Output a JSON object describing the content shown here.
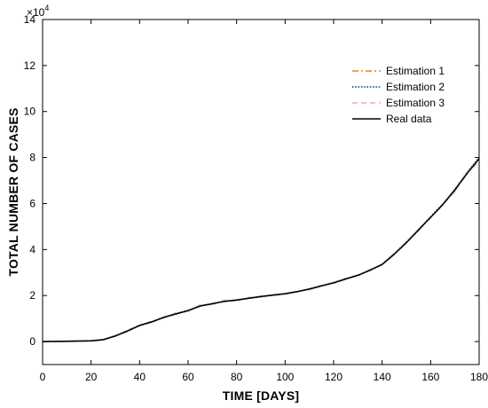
{
  "chart_data": {
    "type": "line",
    "xlabel": "TIME [DAYS]",
    "ylabel": "TOTAL NUMBER OF CASES",
    "y_multiplier_label": {
      "base": "×10",
      "exponent": "4"
    },
    "xlim": [
      0,
      180
    ],
    "ylim": [
      -1,
      14
    ],
    "x_ticks": [
      0,
      20,
      40,
      60,
      80,
      100,
      120,
      140,
      160,
      180
    ],
    "y_ticks": [
      0,
      2,
      4,
      6,
      8,
      10,
      12,
      14
    ],
    "grid": false,
    "legend_position": "top-right",
    "x": [
      0,
      10,
      20,
      25,
      30,
      35,
      40,
      45,
      50,
      55,
      60,
      65,
      70,
      75,
      80,
      85,
      90,
      95,
      100,
      105,
      110,
      115,
      120,
      125,
      130,
      135,
      140,
      145,
      150,
      155,
      160,
      165,
      170,
      175,
      180
    ],
    "series": [
      {
        "name": "Estimation 1",
        "color": "#f07f1d",
        "style": "dashdot",
        "values": [
          0,
          0.01,
          0.03,
          0.08,
          0.25,
          0.45,
          0.7,
          0.85,
          1.05,
          1.2,
          1.35,
          1.55,
          1.65,
          1.75,
          1.8,
          1.88,
          1.95,
          2.02,
          2.08,
          2.17,
          2.28,
          2.42,
          2.55,
          2.72,
          2.88,
          3.1,
          3.35,
          3.78,
          4.3,
          4.85,
          5.4,
          5.95,
          6.55,
          7.3,
          7.95
        ]
      },
      {
        "name": "Estimation 2",
        "color": "#0f76a8",
        "style": "dotted",
        "values": [
          0,
          0.01,
          0.03,
          0.08,
          0.25,
          0.45,
          0.7,
          0.86,
          1.06,
          1.2,
          1.34,
          1.54,
          1.65,
          1.74,
          1.81,
          1.88,
          1.95,
          2.02,
          2.07,
          2.17,
          2.28,
          2.42,
          2.56,
          2.72,
          2.88,
          3.1,
          3.36,
          3.8,
          4.32,
          4.86,
          5.42,
          5.98,
          6.6,
          7.35,
          8.0
        ]
      },
      {
        "name": "Estimation 3",
        "color": "#f4a7b9",
        "style": "dashed",
        "values": [
          0,
          0.0,
          0.02,
          0.1,
          0.22,
          0.5,
          0.68,
          0.9,
          1.02,
          1.26,
          1.3,
          1.6,
          1.6,
          1.8,
          1.76,
          1.92,
          1.92,
          2.06,
          2.05,
          2.2,
          2.25,
          2.46,
          2.52,
          2.76,
          2.85,
          3.14,
          3.33,
          3.84,
          4.26,
          4.9,
          5.36,
          6.0,
          6.5,
          7.36,
          7.8
        ]
      },
      {
        "name": "Real data",
        "color": "#000000",
        "style": "solid",
        "values": [
          0,
          0.01,
          0.03,
          0.08,
          0.24,
          0.46,
          0.7,
          0.85,
          1.05,
          1.2,
          1.35,
          1.55,
          1.64,
          1.75,
          1.8,
          1.88,
          1.96,
          2.02,
          2.08,
          2.17,
          2.28,
          2.42,
          2.55,
          2.72,
          2.88,
          3.1,
          3.35,
          3.8,
          4.3,
          4.85,
          5.4,
          5.95,
          6.6,
          7.3,
          7.95
        ]
      }
    ]
  }
}
